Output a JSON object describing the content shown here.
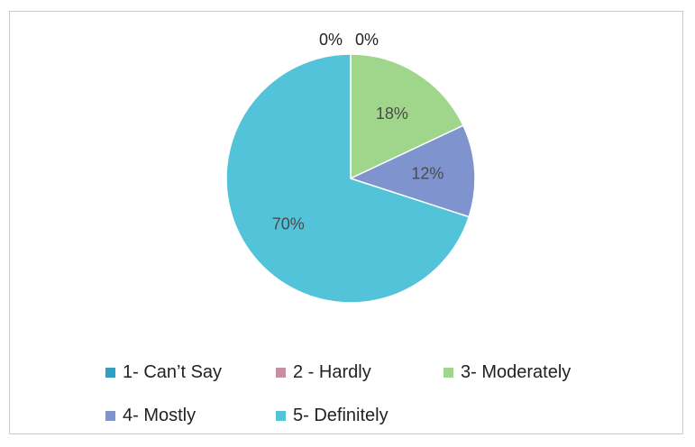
{
  "chart_data": {
    "type": "pie",
    "categories": [
      "1- Can’t Say",
      "2 - Hardly",
      "3- Moderately",
      "4- Mostly",
      "5- Definitely"
    ],
    "values": [
      0,
      0,
      18,
      12,
      70
    ],
    "labels": [
      "0%",
      "0%",
      "18%",
      "12%",
      "70%"
    ],
    "colors": [
      "#2f9fc4",
      "#c98ea0",
      "#9fd68b",
      "#7f93cf",
      "#52c3d8"
    ],
    "legend_position": "bottom"
  }
}
